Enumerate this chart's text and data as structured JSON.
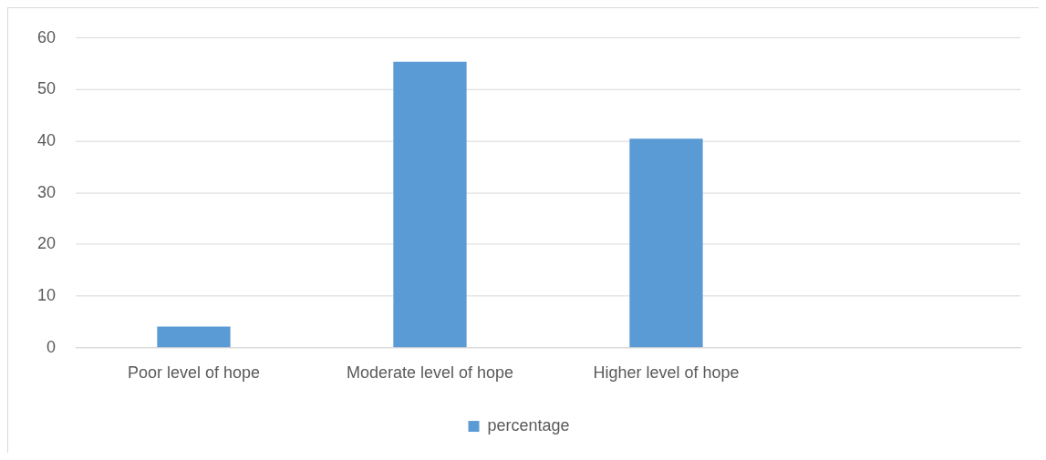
{
  "chart_data": {
    "type": "bar",
    "categories": [
      "Poor level of hope",
      "Moderate level of hope",
      "Higher level of hope",
      null
    ],
    "series": [
      {
        "name": "percentage",
        "color": "#5b9bd5",
        "values": [
          4.1,
          55.4,
          40.5,
          null
        ]
      }
    ],
    "ylim": [
      0,
      60
    ],
    "yticks": [
      0,
      10,
      20,
      30,
      40,
      50,
      60
    ],
    "grid": "y",
    "legend": "bottom"
  }
}
